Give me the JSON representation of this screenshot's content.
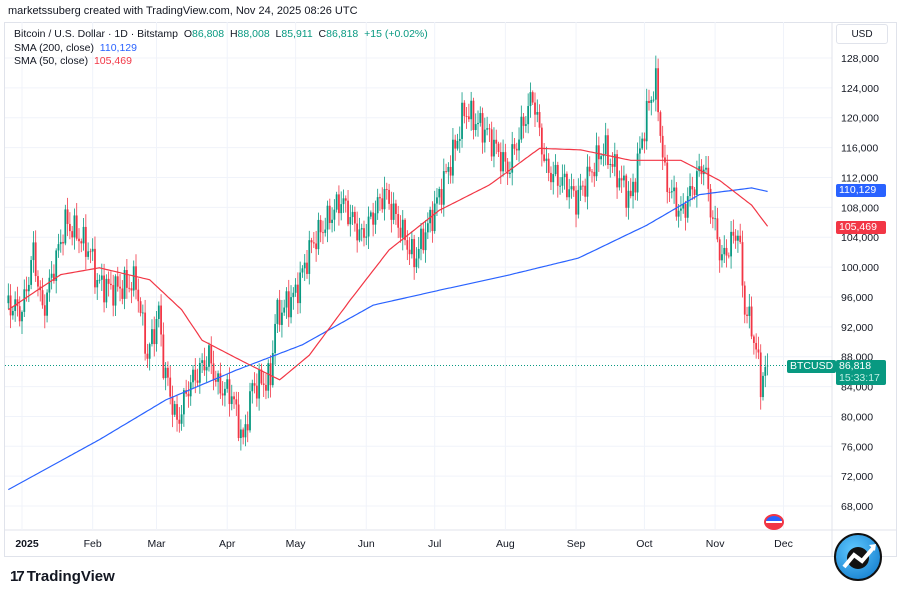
{
  "header": {
    "credit": "marketssuberg created with TradingView.com, Nov 24, 2025 08:26 UTC",
    "currency": "USD",
    "brand": "TradingView"
  },
  "legend": {
    "symbol": "Bitcoin / U.S. Dollar · 1D · Bitstamp",
    "o_label": "O",
    "o": "86,808",
    "h_label": "H",
    "h": "88,008",
    "l_label": "L",
    "l": "85,911",
    "c_label": "C",
    "c": "86,818",
    "change": "+15 (+0.02%)",
    "sma200_label": "SMA (200, close)",
    "sma200": "110,129",
    "sma50_label": "SMA (50, close)",
    "sma50": "105,469"
  },
  "tags": {
    "ticker": "BTCUSD",
    "price": "86,818",
    "countdown": "15:33:17",
    "sma200": "110,129",
    "sma50": "105,469"
  },
  "colors": {
    "up": "#089981",
    "down": "#f23645",
    "sma200": "#2962ff",
    "sma50": "#f23645"
  },
  "chart_data": {
    "type": "candlestick",
    "title": "Bitcoin / U.S. Dollar · 1D · Bitstamp",
    "ylim": [
      66000,
      130000
    ],
    "y_ticks": [
      68000,
      72000,
      76000,
      80000,
      84000,
      88000,
      92000,
      96000,
      100000,
      104000,
      108000,
      112000,
      116000,
      120000,
      124000,
      128000
    ],
    "y_tick_labels": [
      "68,000",
      "72,000",
      "76,000",
      "80,000",
      "84,000",
      "88,000",
      "92,000",
      "96,000",
      "100,000",
      "104,000",
      "108,000",
      "112,000",
      "116,000",
      "120,000",
      "124,000",
      "128,000"
    ],
    "x_ticks": [
      {
        "day": 0,
        "label": "2025"
      },
      {
        "day": 31,
        "label": "Feb"
      },
      {
        "day": 59,
        "label": "Mar"
      },
      {
        "day": 90,
        "label": "Apr"
      },
      {
        "day": 120,
        "label": "May"
      },
      {
        "day": 151,
        "label": "Jun"
      },
      {
        "day": 181,
        "label": "Jul"
      },
      {
        "day": 212,
        "label": "Aug"
      },
      {
        "day": 243,
        "label": "Sep"
      },
      {
        "day": 273,
        "label": "Oct"
      },
      {
        "day": 304,
        "label": "Nov"
      },
      {
        "day": 334,
        "label": "Dec"
      }
    ],
    "close_anchors_day_price": [
      [
        -6,
        95000
      ],
      [
        0,
        94000
      ],
      [
        5,
        102000
      ],
      [
        9,
        94000
      ],
      [
        14,
        100000
      ],
      [
        19,
        106000
      ],
      [
        24,
        104500
      ],
      [
        30,
        102000
      ],
      [
        33,
        98000
      ],
      [
        40,
        97000
      ],
      [
        50,
        98000
      ],
      [
        55,
        88000
      ],
      [
        60,
        94000
      ],
      [
        62,
        87000
      ],
      [
        68,
        79000
      ],
      [
        73,
        84000
      ],
      [
        82,
        88000
      ],
      [
        86,
        84000
      ],
      [
        92,
        83000
      ],
      [
        97,
        76500
      ],
      [
        101,
        84000
      ],
      [
        109,
        85000
      ],
      [
        111,
        93000
      ],
      [
        120,
        96500
      ],
      [
        127,
        103000
      ],
      [
        140,
        109000
      ],
      [
        149,
        104000
      ],
      [
        159,
        110000
      ],
      [
        167,
        104500
      ],
      [
        172,
        101000
      ],
      [
        180,
        107000
      ],
      [
        190,
        116000
      ],
      [
        194,
        121000
      ],
      [
        204,
        118000
      ],
      [
        213,
        113000
      ],
      [
        224,
        123000
      ],
      [
        230,
        113000
      ],
      [
        239,
        111000
      ],
      [
        243,
        109000
      ],
      [
        255,
        116000
      ],
      [
        267,
        109000
      ],
      [
        275,
        122000
      ],
      [
        278,
        124500
      ],
      [
        282,
        112000
      ],
      [
        289,
        107000
      ],
      [
        299,
        114000
      ],
      [
        302,
        108000
      ],
      [
        307,
        101000
      ],
      [
        314,
        105000
      ],
      [
        317,
        94500
      ],
      [
        320,
        92000
      ],
      [
        323,
        87000
      ],
      [
        324,
        84500
      ],
      [
        327,
        86818
      ]
    ],
    "sma200_anchors": [
      [
        -6,
        70200
      ],
      [
        34,
        76900
      ],
      [
        63,
        82200
      ],
      [
        94,
        86200
      ],
      [
        123,
        89600
      ],
      [
        154,
        94900
      ],
      [
        183,
        96900
      ],
      [
        213,
        98900
      ],
      [
        244,
        101200
      ],
      [
        274,
        105600
      ],
      [
        297,
        109700
      ],
      [
        320,
        110600
      ],
      [
        327,
        110129
      ]
    ],
    "sma50_anchors": [
      [
        -6,
        94300
      ],
      [
        17,
        99000
      ],
      [
        34,
        99900
      ],
      [
        56,
        98300
      ],
      [
        70,
        94300
      ],
      [
        79,
        90200
      ],
      [
        96,
        87500
      ],
      [
        113,
        84900
      ],
      [
        126,
        88200
      ],
      [
        144,
        95600
      ],
      [
        161,
        102300
      ],
      [
        183,
        107600
      ],
      [
        205,
        111000
      ],
      [
        227,
        115900
      ],
      [
        245,
        115700
      ],
      [
        267,
        114300
      ],
      [
        289,
        114300
      ],
      [
        306,
        111600
      ],
      [
        320,
        108300
      ],
      [
        327,
        105469
      ]
    ],
    "last_price": 86818
  }
}
